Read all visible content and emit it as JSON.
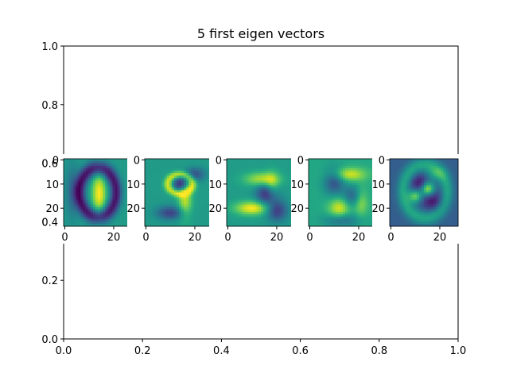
{
  "chart_data": {
    "type": "heatmap",
    "title": "5 first eigen vectors",
    "colormap": "viridis",
    "colors": {
      "frame": "#000000",
      "background": "#ffffff"
    },
    "outer_axes": {
      "xlim": [
        0.0,
        1.0
      ],
      "ylim": [
        0.0,
        1.0
      ],
      "xticks": [
        "0.0",
        "0.2",
        "0.4",
        "0.6",
        "0.8",
        "1.0"
      ],
      "yticks": [
        "0.0",
        "0.2",
        "0.4",
        "0.6",
        "0.8",
        "1.0"
      ],
      "xlabel": "",
      "ylabel": ""
    },
    "panel_axes": {
      "image_size": [
        28,
        28
      ],
      "xticks": [
        "0",
        "20"
      ],
      "yticks": [
        "0",
        "10",
        "20"
      ],
      "first_panel_yticks": [
        "0",
        "10",
        "20"
      ]
    },
    "panels": [
      {
        "index": 1,
        "description_shape": "ring-like digit zero with bright central stroke",
        "bg_level": 0.55
      },
      {
        "index": 2,
        "description_shape": "looped shape resembling nine",
        "bg_level": 0.55
      },
      {
        "index": 3,
        "description_shape": "curved shape resembling two",
        "bg_level": 0.55
      },
      {
        "index": 4,
        "description_shape": "swirl shape resembling five",
        "bg_level": 0.6
      },
      {
        "index": 5,
        "description_shape": "diagonal shape on darker background",
        "bg_level": 0.3
      }
    ]
  }
}
